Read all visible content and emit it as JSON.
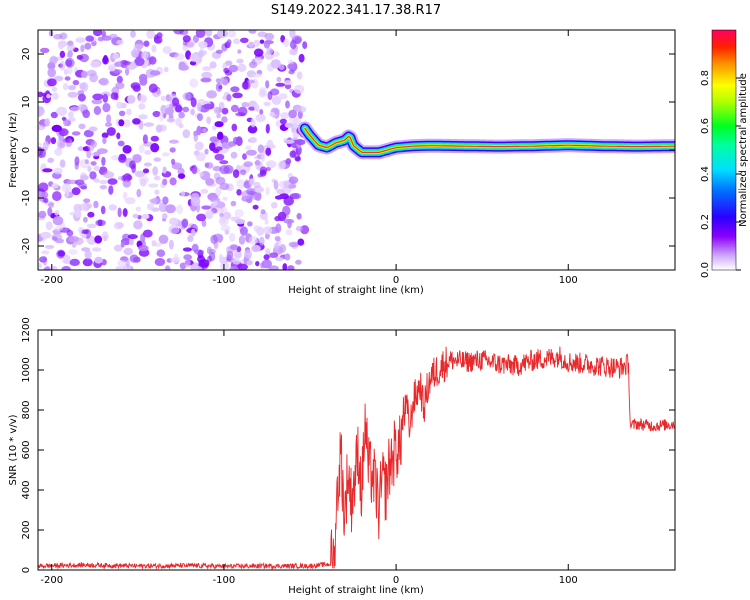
{
  "title": "S149.2022.341.17.38.R17",
  "chart_data": [
    {
      "type": "heatmap",
      "xlabel": "Height of straight line (km)",
      "ylabel": "Frequency (Hz)",
      "xlim": [
        -208,
        162
      ],
      "ylim": [
        -25,
        25
      ],
      "xticks": [
        -200,
        -100,
        0,
        100
      ],
      "yticks": [
        -20,
        -10,
        0,
        10,
        20
      ],
      "colorbar": {
        "label": "Normalized spectral amplitude",
        "range": [
          0,
          1
        ],
        "ticks": [
          "0.0",
          "0.2",
          "0.4",
          "0.6",
          "0.8"
        ],
        "colors": [
          "#ffffff",
          "#8a00ff",
          "#2a00ff",
          "#00c8ff",
          "#00ff40",
          "#ffff00",
          "#ff7a00",
          "#ff0040"
        ]
      },
      "noise_region": {
        "x_range": [
          -208,
          -53
        ],
        "y_range": [
          -25,
          25
        ]
      },
      "ridge": {
        "x": [
          -53,
          -50,
          -45,
          -40,
          -35,
          -30,
          -27,
          -25,
          -20,
          -15,
          -10,
          -5,
          0,
          10,
          20,
          40,
          60,
          80,
          100,
          120,
          140,
          162
        ],
        "y": [
          4.5,
          3,
          1,
          0.5,
          1.5,
          2,
          3,
          1,
          -0.5,
          -0.5,
          -0.5,
          0,
          0.5,
          0.8,
          0.9,
          0.8,
          0.7,
          0.8,
          1.0,
          0.8,
          0.7,
          0.8
        ]
      }
    },
    {
      "type": "line",
      "xlabel": "Height of straight line (km)",
      "ylabel": "SNR (10 * v/v)",
      "xlim": [
        -208,
        162
      ],
      "ylim": [
        0,
        1200
      ],
      "xticks": [
        -200,
        -100,
        0,
        100
      ],
      "yticks": [
        0,
        200,
        400,
        600,
        800,
        1000,
        1200
      ],
      "series_color": "#e8282a",
      "x": [
        -208,
        -180,
        -150,
        -120,
        -100,
        -80,
        -50,
        -38,
        -36,
        -34,
        -32,
        -30,
        -28,
        -26,
        -24,
        -22,
        -20,
        -18,
        -16,
        -14,
        -12,
        -10,
        -8,
        -6,
        -4,
        -2,
        0,
        2,
        4,
        6,
        8,
        10,
        12,
        14,
        16,
        18,
        20,
        24,
        28,
        32,
        40,
        50,
        60,
        70,
        80,
        90,
        95,
        100,
        110,
        120,
        130,
        135,
        136,
        140,
        150,
        162
      ],
      "y": [
        20,
        25,
        20,
        22,
        18,
        20,
        20,
        30,
        100,
        400,
        600,
        250,
        500,
        350,
        450,
        600,
        380,
        750,
        500,
        480,
        430,
        300,
        450,
        400,
        520,
        560,
        620,
        600,
        750,
        820,
        700,
        850,
        880,
        930,
        800,
        900,
        960,
        1000,
        1030,
        1050,
        1040,
        1050,
        1030,
        1020,
        1050,
        1060,
        1070,
        1040,
        1030,
        1020,
        1010,
        1030,
        720,
        730,
        720,
        730
      ]
    }
  ]
}
